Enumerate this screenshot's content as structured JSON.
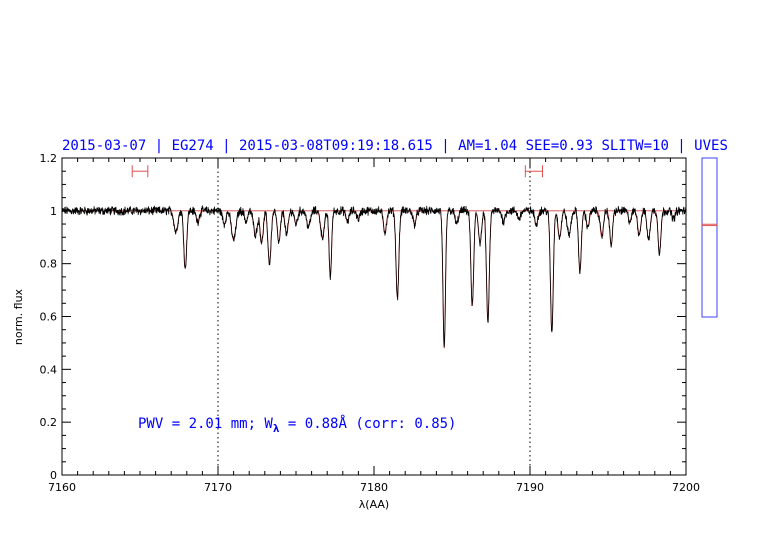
{
  "header": {
    "title": "2015-03-07 | EG274 | 2015-03-08T09:19:18.615 | AM=1.04  SEE=0.93  SLITW=10 | UVES"
  },
  "annotation": {
    "pwv_prefix": "PWV = 2.01 mm; W",
    "lambda_sub": "λ",
    "pwv_suffix": " = 0.88Å (corr: 0.85)"
  },
  "chart_data": {
    "type": "line",
    "xlabel": "λ(AA)",
    "ylabel": "norm. flux",
    "xlim": [
      7160,
      7200
    ],
    "ylim": [
      0,
      1.2
    ],
    "x_ticks": [
      7160,
      7170,
      7180,
      7190,
      7200
    ],
    "y_ticks": [
      0,
      0.2,
      0.4,
      0.6,
      0.8,
      1,
      1.2
    ],
    "x_tick_labels": [
      "7160",
      "7170",
      "7180",
      "7190",
      "7200"
    ],
    "y_tick_labels": [
      "0",
      "0.2",
      "0.4",
      "0.6",
      "0.8",
      "1",
      "1.2"
    ],
    "grid": false,
    "colors": {
      "spectrum": "#000000",
      "model": "#d04040",
      "text": "#0000ff",
      "markers": "#e05050",
      "sidebar": "#4040ff"
    },
    "vertical_markers_x": [
      7170,
      7190
    ],
    "continuum_level": 1.0,
    "range_markers": [
      {
        "x_start": 7164.5,
        "x_end": 7165.5,
        "y": 1.15
      },
      {
        "x_start": 7189.7,
        "x_end": 7190.8,
        "y": 1.15
      }
    ],
    "absorption_lines": [
      {
        "x": 7167.3,
        "depth": 0.08,
        "width": 0.12
      },
      {
        "x": 7167.9,
        "depth": 0.22,
        "width": 0.09
      },
      {
        "x": 7168.7,
        "depth": 0.04,
        "width": 0.1
      },
      {
        "x": 7170.4,
        "depth": 0.05,
        "width": 0.1
      },
      {
        "x": 7171.0,
        "depth": 0.11,
        "width": 0.14
      },
      {
        "x": 7171.8,
        "depth": 0.04,
        "width": 0.1
      },
      {
        "x": 7172.4,
        "depth": 0.09,
        "width": 0.12
      },
      {
        "x": 7172.8,
        "depth": 0.12,
        "width": 0.1
      },
      {
        "x": 7173.3,
        "depth": 0.2,
        "width": 0.1
      },
      {
        "x": 7173.9,
        "depth": 0.12,
        "width": 0.1
      },
      {
        "x": 7174.4,
        "depth": 0.09,
        "width": 0.1
      },
      {
        "x": 7175.0,
        "depth": 0.05,
        "width": 0.1
      },
      {
        "x": 7175.8,
        "depth": 0.06,
        "width": 0.12
      },
      {
        "x": 7176.7,
        "depth": 0.1,
        "width": 0.12
      },
      {
        "x": 7177.2,
        "depth": 0.25,
        "width": 0.08
      },
      {
        "x": 7178.3,
        "depth": 0.04,
        "width": 0.1
      },
      {
        "x": 7179.0,
        "depth": 0.03,
        "width": 0.1
      },
      {
        "x": 7180.7,
        "depth": 0.08,
        "width": 0.1
      },
      {
        "x": 7181.5,
        "depth": 0.33,
        "width": 0.09
      },
      {
        "x": 7182.6,
        "depth": 0.05,
        "width": 0.1
      },
      {
        "x": 7184.5,
        "depth": 0.52,
        "width": 0.08
      },
      {
        "x": 7185.3,
        "depth": 0.05,
        "width": 0.1
      },
      {
        "x": 7186.3,
        "depth": 0.36,
        "width": 0.09
      },
      {
        "x": 7186.8,
        "depth": 0.12,
        "width": 0.1
      },
      {
        "x": 7187.3,
        "depth": 0.42,
        "width": 0.09
      },
      {
        "x": 7188.3,
        "depth": 0.04,
        "width": 0.1
      },
      {
        "x": 7189.3,
        "depth": 0.03,
        "width": 0.1
      },
      {
        "x": 7190.4,
        "depth": 0.05,
        "width": 0.1
      },
      {
        "x": 7191.4,
        "depth": 0.46,
        "width": 0.09
      },
      {
        "x": 7191.9,
        "depth": 0.1,
        "width": 0.1
      },
      {
        "x": 7192.5,
        "depth": 0.09,
        "width": 0.12
      },
      {
        "x": 7193.2,
        "depth": 0.23,
        "width": 0.09
      },
      {
        "x": 7193.7,
        "depth": 0.06,
        "width": 0.1
      },
      {
        "x": 7194.6,
        "depth": 0.1,
        "width": 0.1
      },
      {
        "x": 7195.2,
        "depth": 0.13,
        "width": 0.09
      },
      {
        "x": 7196.4,
        "depth": 0.04,
        "width": 0.1
      },
      {
        "x": 7197.0,
        "depth": 0.09,
        "width": 0.1
      },
      {
        "x": 7197.6,
        "depth": 0.11,
        "width": 0.1
      },
      {
        "x": 7198.3,
        "depth": 0.16,
        "width": 0.09
      },
      {
        "x": 7199.2,
        "depth": 0.03,
        "width": 0.1
      }
    ],
    "sidebar_gauge": {
      "ylim": [
        0,
        1.2
      ],
      "markers": [
        0.69,
        0.7
      ]
    }
  }
}
